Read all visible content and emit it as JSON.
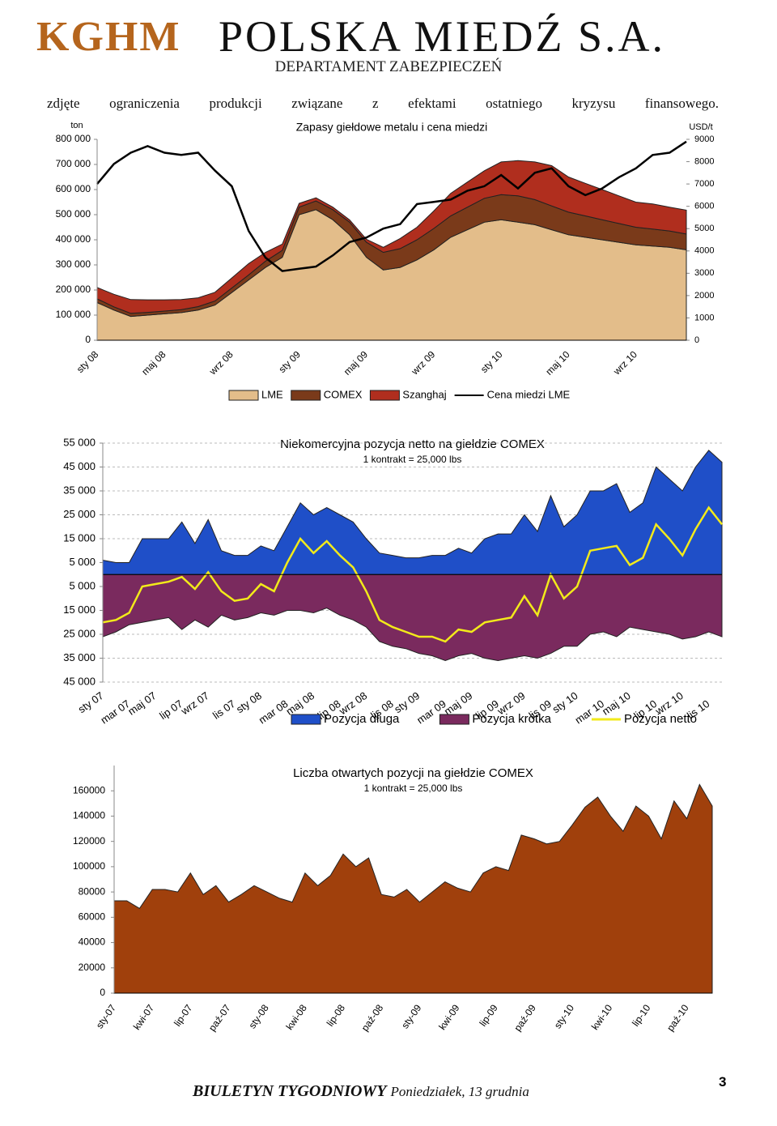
{
  "header": {
    "brand": "KGHM",
    "company": "POLSKA MIEDŹ S.A.",
    "department": "DEPARTAMENT ZABEZPIECZEŃ"
  },
  "intro_text": "zdjęte ograniczenia produkcji związane z efektami ostatniego kryzysu finansowego.",
  "chart_data": [
    {
      "type": "area",
      "stacked": true,
      "title": "Zapasy giełdowe metalu i cena miedzi",
      "ylabel": "ton",
      "y2label": "USD/t",
      "categories": [
        "sty 08",
        null,
        null,
        null,
        "maj 08",
        null,
        null,
        null,
        "wrz 08",
        null,
        null,
        null,
        "sty 09",
        null,
        null,
        null,
        "maj 09",
        null,
        null,
        null,
        "wrz 09",
        null,
        null,
        null,
        "sty 10",
        null,
        null,
        null,
        "maj 10",
        null,
        null,
        null,
        "wrz 10",
        null,
        null,
        null
      ],
      "ylim": [
        0,
        800000
      ],
      "yticks": [
        0,
        {
          "value": 100000,
          "label": "100 000"
        },
        {
          "value": 200000,
          "label": "200 000"
        },
        {
          "value": 300000,
          "label": "300 000"
        },
        {
          "value": 400000,
          "label": "400 000"
        },
        {
          "value": 500000,
          "label": "500 000"
        },
        {
          "value": 600000,
          "label": "600 000"
        },
        {
          "value": 700000,
          "label": "700 000"
        },
        {
          "value": 800000,
          "label": "800 000"
        }
      ],
      "y2lim": [
        0,
        9000
      ],
      "y2ticks": [
        0,
        1000,
        2000,
        3000,
        4000,
        5000,
        6000,
        7000,
        8000,
        9000
      ],
      "grid": false,
      "series": [
        {
          "name": "LME",
          "color": "#e3bd8a",
          "values": [
            150000,
            120000,
            95000,
            100000,
            105000,
            110000,
            120000,
            140000,
            190000,
            240000,
            290000,
            330000,
            500000,
            520000,
            480000,
            420000,
            330000,
            280000,
            290000,
            320000,
            360000,
            410000,
            440000,
            470000,
            480000,
            470000,
            460000,
            440000,
            420000,
            410000,
            400000,
            390000,
            380000,
            375000,
            370000,
            360000
          ]
        },
        {
          "name": "COMEX",
          "color": "#7a3a1a",
          "values": [
            15000,
            13000,
            12000,
            11000,
            11000,
            12000,
            14000,
            16000,
            18000,
            20000,
            25000,
            28000,
            30000,
            35000,
            40000,
            50000,
            60000,
            70000,
            75000,
            80000,
            85000,
            85000,
            90000,
            95000,
            100000,
            105000,
            100000,
            95000,
            90000,
            85000,
            80000,
            75000,
            70000,
            68000,
            65000,
            63000
          ]
        },
        {
          "name": "Szanghaj",
          "color": "#b02e1e",
          "values": [
            45000,
            50000,
            55000,
            50000,
            45000,
            40000,
            35000,
            35000,
            40000,
            45000,
            35000,
            25000,
            15000,
            12000,
            10000,
            9000,
            12000,
            20000,
            40000,
            50000,
            70000,
            90000,
            100000,
            110000,
            130000,
            140000,
            150000,
            160000,
            140000,
            130000,
            120000,
            110000,
            100000,
            100000,
            95000,
            95000
          ]
        },
        {
          "name": "Cena miedzi LME",
          "type": "line",
          "axis": "y2",
          "color": "#000000",
          "values": [
            7000,
            7900,
            8400,
            8700,
            8400,
            8300,
            8400,
            7600,
            6900,
            4900,
            3700,
            3100,
            3200,
            3300,
            3800,
            4400,
            4600,
            5000,
            5200,
            6100,
            6200,
            6300,
            6700,
            6900,
            7400,
            6800,
            7500,
            7700,
            6900,
            6500,
            6800,
            7300,
            7700,
            8300,
            8400,
            8900
          ]
        }
      ]
    },
    {
      "type": "area",
      "stacked": false,
      "title": "Niekomercyjna pozycja netto na giełdzie COMEX",
      "subtitle": "1 kontrakt = 25,000 lbs",
      "categories": [
        "sty 07",
        null,
        "mar 07",
        null,
        "maj 07",
        null,
        "lip 07",
        null,
        "wrz 07",
        null,
        "lis 07",
        null,
        "sty 08",
        null,
        "mar 08",
        null,
        "maj 08",
        null,
        "lip 08",
        null,
        "wrz 08",
        null,
        "lis 08",
        null,
        "sty 09",
        null,
        "mar 09",
        null,
        "maj 09",
        null,
        "lip 09",
        null,
        "wrz 09",
        null,
        "lis 09",
        null,
        "sty 10",
        null,
        "mar 10",
        null,
        "maj 10",
        null,
        "lip 10",
        null,
        "wrz 10",
        null,
        "lis 10",
        null
      ],
      "ylim": [
        -45000,
        55000
      ],
      "yticks": [
        {
          "value": -45000,
          "label": "45 000"
        },
        {
          "value": -35000,
          "label": "35 000"
        },
        {
          "value": -25000,
          "label": "25 000"
        },
        {
          "value": -15000,
          "label": "15 000"
        },
        {
          "value": -5000,
          "label": "5 000"
        },
        {
          "value": 5000,
          "label": "5 000"
        },
        {
          "value": 15000,
          "label": "15 000"
        },
        {
          "value": 25000,
          "label": "25 000"
        },
        {
          "value": 35000,
          "label": "35 000"
        },
        {
          "value": 45000,
          "label": "45 000"
        },
        {
          "value": 55000,
          "label": "55 000"
        }
      ],
      "grid": true,
      "series": [
        {
          "name": "Pozycja długa",
          "color": "#1f4fc8",
          "values": [
            6000,
            5000,
            5000,
            15000,
            15000,
            15000,
            22000,
            13000,
            23000,
            10000,
            8000,
            8000,
            12000,
            10000,
            20000,
            30000,
            25000,
            28000,
            25000,
            22000,
            15000,
            9000,
            8000,
            7000,
            7000,
            8000,
            8000,
            11000,
            9000,
            15000,
            17000,
            17000,
            25000,
            18000,
            33000,
            20000,
            25000,
            35000,
            35000,
            38000,
            26000,
            30000,
            45000,
            40000,
            35000,
            45000,
            52000,
            47000
          ]
        },
        {
          "name": "Pozycja krótka",
          "color": "#7a2a5e",
          "values": [
            -26000,
            -24000,
            -21000,
            -20000,
            -19000,
            -18000,
            -23000,
            -19000,
            -22000,
            -17000,
            -19000,
            -18000,
            -16000,
            -17000,
            -15000,
            -15000,
            -16000,
            -14000,
            -17000,
            -19000,
            -22000,
            -28000,
            -30000,
            -31000,
            -33000,
            -34000,
            -36000,
            -34000,
            -33000,
            -35000,
            -36000,
            -35000,
            -34000,
            -35000,
            -33000,
            -30000,
            -30000,
            -25000,
            -24000,
            -26000,
            -22000,
            -23000,
            -24000,
            -25000,
            -27000,
            -26000,
            -24000,
            -26000
          ]
        },
        {
          "name": "Pozycja netto",
          "type": "line",
          "color": "#f2ea1a",
          "values": [
            -20000,
            -19000,
            -16000,
            -5000,
            -4000,
            -3000,
            -1000,
            -6000,
            1000,
            -7000,
            -11000,
            -10000,
            -4000,
            -7000,
            5000,
            15000,
            9000,
            14000,
            8000,
            3000,
            -7000,
            -19000,
            -22000,
            -24000,
            -26000,
            -26000,
            -28000,
            -23000,
            -24000,
            -20000,
            -19000,
            -18000,
            -9000,
            -17000,
            0,
            -10000,
            -5000,
            10000,
            11000,
            12000,
            4000,
            7000,
            21000,
            15000,
            8000,
            19000,
            28000,
            21000
          ]
        }
      ]
    },
    {
      "type": "area",
      "stacked": false,
      "title": "Liczba otwartych pozycji na giełdzie COMEX",
      "subtitle": "1 kontrakt = 25,000 lbs",
      "categories": [
        "sty-07",
        null,
        null,
        "kwi-07",
        null,
        null,
        "lip-07",
        null,
        null,
        "paź-07",
        null,
        null,
        "sty-08",
        null,
        null,
        "kwi-08",
        null,
        null,
        "lip-08",
        null,
        null,
        "paź-08",
        null,
        null,
        "sty-09",
        null,
        null,
        "kwi-09",
        null,
        null,
        "lip-09",
        null,
        null,
        "paź-09",
        null,
        null,
        "sty-10",
        null,
        null,
        "kwi-10",
        null,
        null,
        "lip-10",
        null,
        null,
        "paź-10",
        null,
        null
      ],
      "ylim": [
        0,
        180000
      ],
      "yticks": [
        0,
        20000,
        40000,
        60000,
        80000,
        100000,
        120000,
        140000,
        160000
      ],
      "grid": false,
      "series": [
        {
          "color": "#a0400c",
          "values": [
            73000,
            73000,
            67000,
            82000,
            82000,
            80000,
            95000,
            78000,
            85000,
            72000,
            78000,
            85000,
            80000,
            75000,
            72000,
            95000,
            85000,
            93000,
            110000,
            100000,
            107000,
            78000,
            76000,
            82000,
            72000,
            80000,
            88000,
            83000,
            80000,
            95000,
            100000,
            97000,
            125000,
            122000,
            118000,
            120000,
            133000,
            147000,
            155000,
            140000,
            128000,
            148000,
            140000,
            122000,
            152000,
            138000,
            165000,
            148000
          ]
        }
      ]
    }
  ],
  "footer": {
    "title": "BIULETYN TYGODNIOWY",
    "date": "Poniedziałek, 13 grudnia",
    "page": "3"
  }
}
